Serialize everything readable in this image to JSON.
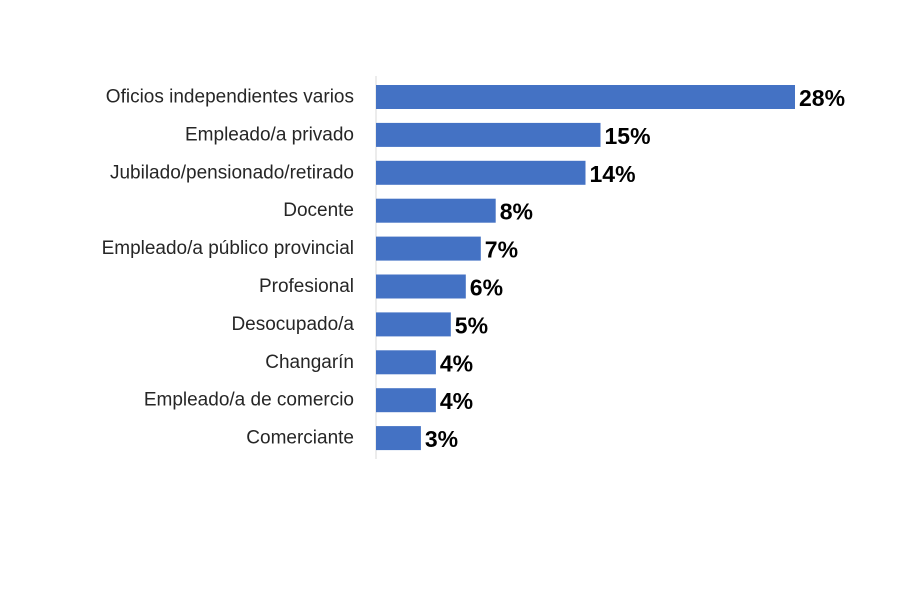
{
  "colors": {
    "bar": "#4472C4",
    "axis": "#d9d9d9",
    "category_text": "#262626",
    "value_text": "#000000"
  },
  "chart_data": {
    "type": "bar",
    "orientation": "horizontal",
    "categories": [
      "Oficios independientes varios",
      "Empleado/a privado",
      "Jubilado/pensionado/retirado",
      "Docente",
      "Empleado/a público provincial",
      "Profesional",
      "Desocupado/a",
      "Changarín",
      "Empleado/a de comercio",
      "Comerciante"
    ],
    "values": [
      28,
      15,
      14,
      8,
      7,
      6,
      5,
      4,
      4,
      3
    ],
    "value_labels": [
      "28%",
      "15%",
      "14%",
      "8%",
      "7%",
      "6%",
      "5%",
      "4%",
      "4%",
      "3%"
    ],
    "unit": "%",
    "title": "",
    "xlabel": "",
    "ylabel": "",
    "xlim": [
      0,
      28
    ],
    "grid": false,
    "legend": "none"
  }
}
